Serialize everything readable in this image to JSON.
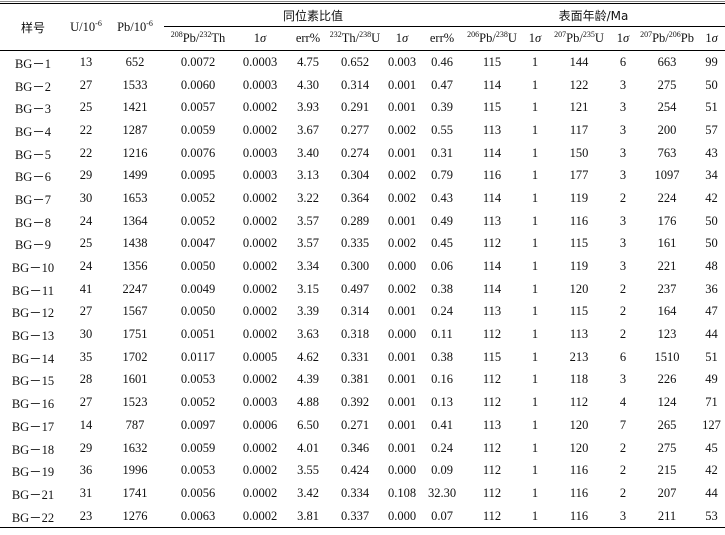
{
  "header": {
    "sample": "样号",
    "u_base": "U/10",
    "pb_base": "Pb/10",
    "exp": "-6",
    "group_ratios": "同位素比值",
    "group_ages": "表面年龄/Ma",
    "c_pb208": "208",
    "c_pb208_mid": "Pb/",
    "c_th232": "232",
    "c_th232_tail": "Th",
    "c_1s": "1",
    "sigma": "σ",
    "c_err": "err%",
    "c_th232b": "232",
    "c_thu_mid": "Th/",
    "c_u238": "238",
    "c_u_tail": "U",
    "c_206": "206",
    "c_206_mid": "Pb/",
    "c_238": "238",
    "c_206_tail": "U",
    "c_207": "207",
    "c_207_mid": "Pb/",
    "c_235": "235",
    "c_207_tail": "U",
    "c_207b": "207",
    "c_207b_mid": "Pb/",
    "c_206b": "206",
    "c_207b_tail": "Pb"
  },
  "rows": [
    [
      "BG－1",
      "13",
      "652",
      "0.0072",
      "0.0003",
      "4.75",
      "0.652",
      "0.003",
      "0.46",
      "115",
      "1",
      "144",
      "6",
      "663",
      "99"
    ],
    [
      "BG－2",
      "27",
      "1533",
      "0.0060",
      "0.0003",
      "4.30",
      "0.314",
      "0.001",
      "0.47",
      "114",
      "1",
      "122",
      "3",
      "275",
      "50"
    ],
    [
      "BG－3",
      "25",
      "1421",
      "0.0057",
      "0.0002",
      "3.93",
      "0.291",
      "0.001",
      "0.39",
      "115",
      "1",
      "121",
      "3",
      "254",
      "51"
    ],
    [
      "BG－4",
      "22",
      "1287",
      "0.0059",
      "0.0002",
      "3.67",
      "0.277",
      "0.002",
      "0.55",
      "113",
      "1",
      "117",
      "3",
      "200",
      "57"
    ],
    [
      "BG－5",
      "22",
      "1216",
      "0.0076",
      "0.0003",
      "3.40",
      "0.274",
      "0.001",
      "0.31",
      "114",
      "1",
      "150",
      "3",
      "763",
      "43"
    ],
    [
      "BG－6",
      "29",
      "1499",
      "0.0095",
      "0.0003",
      "3.13",
      "0.304",
      "0.002",
      "0.79",
      "116",
      "1",
      "177",
      "3",
      "1097",
      "34"
    ],
    [
      "BG－7",
      "30",
      "1653",
      "0.0052",
      "0.0002",
      "3.22",
      "0.364",
      "0.002",
      "0.43",
      "114",
      "1",
      "119",
      "2",
      "224",
      "42"
    ],
    [
      "BG－8",
      "24",
      "1364",
      "0.0052",
      "0.0002",
      "3.57",
      "0.289",
      "0.001",
      "0.49",
      "113",
      "1",
      "116",
      "3",
      "176",
      "50"
    ],
    [
      "BG－9",
      "25",
      "1438",
      "0.0047",
      "0.0002",
      "3.57",
      "0.335",
      "0.002",
      "0.45",
      "112",
      "1",
      "115",
      "3",
      "161",
      "50"
    ],
    [
      "BG－10",
      "24",
      "1356",
      "0.0050",
      "0.0002",
      "3.34",
      "0.300",
      "0.000",
      "0.06",
      "114",
      "1",
      "119",
      "3",
      "221",
      "48"
    ],
    [
      "BG－11",
      "41",
      "2247",
      "0.0049",
      "0.0002",
      "3.15",
      "0.497",
      "0.002",
      "0.38",
      "114",
      "1",
      "120",
      "2",
      "237",
      "36"
    ],
    [
      "BG－12",
      "27",
      "1567",
      "0.0050",
      "0.0002",
      "3.39",
      "0.314",
      "0.001",
      "0.24",
      "113",
      "1",
      "115",
      "2",
      "164",
      "47"
    ],
    [
      "BG－13",
      "30",
      "1751",
      "0.0051",
      "0.0002",
      "3.63",
      "0.318",
      "0.000",
      "0.11",
      "112",
      "1",
      "113",
      "2",
      "123",
      "44"
    ],
    [
      "BG－14",
      "35",
      "1702",
      "0.0117",
      "0.0005",
      "4.62",
      "0.331",
      "0.001",
      "0.38",
      "115",
      "1",
      "213",
      "6",
      "1510",
      "51"
    ],
    [
      "BG－15",
      "28",
      "1601",
      "0.0053",
      "0.0002",
      "4.39",
      "0.381",
      "0.001",
      "0.16",
      "112",
      "1",
      "118",
      "3",
      "226",
      "49"
    ],
    [
      "BG－16",
      "27",
      "1523",
      "0.0052",
      "0.0003",
      "4.88",
      "0.392",
      "0.001",
      "0.13",
      "112",
      "1",
      "112",
      "4",
      "124",
      "71"
    ],
    [
      "BG－17",
      "14",
      "787",
      "0.0097",
      "0.0006",
      "6.50",
      "0.271",
      "0.001",
      "0.41",
      "113",
      "1",
      "120",
      "7",
      "265",
      "127"
    ],
    [
      "BG－18",
      "29",
      "1632",
      "0.0059",
      "0.0002",
      "4.01",
      "0.346",
      "0.001",
      "0.24",
      "112",
      "1",
      "120",
      "2",
      "275",
      "45"
    ],
    [
      "BG－19",
      "36",
      "1996",
      "0.0053",
      "0.0002",
      "3.55",
      "0.424",
      "0.000",
      "0.09",
      "112",
      "1",
      "116",
      "2",
      "215",
      "42"
    ],
    [
      "BG－21",
      "31",
      "1741",
      "0.0056",
      "0.0002",
      "3.42",
      "0.334",
      "0.108",
      "32.30",
      "112",
      "1",
      "116",
      "2",
      "207",
      "44"
    ],
    [
      "BG－22",
      "23",
      "1276",
      "0.0063",
      "0.0002",
      "3.81",
      "0.337",
      "0.000",
      "0.07",
      "112",
      "1",
      "116",
      "3",
      "211",
      "53"
    ]
  ]
}
